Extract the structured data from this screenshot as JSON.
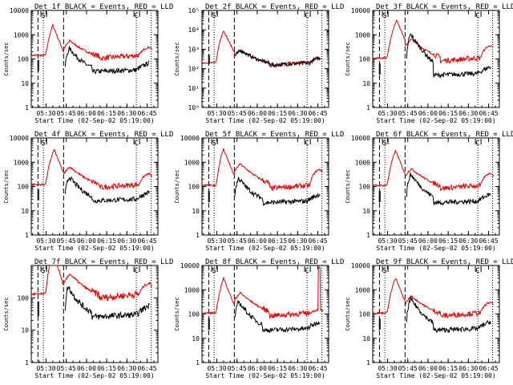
{
  "colors": {
    "events": "#000000",
    "lld": "#e00000",
    "axis": "#000000",
    "background": "#ffffff"
  },
  "chart_data": [
    {
      "type": "line",
      "title": "Det_1f BLACK = Events, RED = LLD",
      "xlabel": "Start Time (02-Sep-02 05:19:00)",
      "ylabel": "Counts/sec",
      "yscale": "log",
      "ylim": [
        1,
        10000
      ],
      "xlim": [
        "05:19",
        "06:53"
      ],
      "xtick_labels": [
        "05:30",
        "05:45",
        "06:00",
        "06:15",
        "06:30",
        "06:45"
      ],
      "ytick_labels": [
        "1",
        "10",
        "100",
        "1000",
        "10000"
      ],
      "markers": {
        "s_label": "S",
        "c_label": "C"
      },
      "events": {
        "base": 35,
        "dip_t": 5.2,
        "peak_t": 28,
        "peak": 250,
        "jump_t": 25,
        "scale": 1.0
      },
      "lld": {
        "base": 140,
        "peak_t": 16,
        "peak": 2500,
        "bump_t": 28,
        "bump": 500,
        "tail": 300
      },
      "series": [
        {
          "name": "Events",
          "color": "#000000"
        },
        {
          "name": "LLD",
          "color": "#e00000"
        }
      ]
    },
    {
      "type": "line",
      "title": "Det_2f BLACK = Events, RED = LLD",
      "xlabel": "Start Time (02-Sep-02 05:19:00)",
      "ylabel": "Counts/sec",
      "yscale": "log",
      "ylim": [
        1,
        100000
      ],
      "xlim": [
        "05:19",
        "06:53"
      ],
      "xtick_labels": [
        "05:30",
        "05:45",
        "06:00",
        "06:15",
        "06:30",
        "06:45"
      ],
      "ytick_labels": [
        "10⁰",
        "10¹",
        "10²",
        "10³",
        "10⁴",
        "10⁵"
      ],
      "markers": {
        "s_label": "S",
        "c_label": "C"
      },
      "events": {
        "base": 200,
        "dip_t": 5.2,
        "peak_t": 28,
        "peak": 800,
        "jump_t": 24,
        "scale": 1.0,
        "merge": true
      },
      "lld": {
        "base": 200,
        "peak_t": 16,
        "peak": 9000,
        "bump_t": 28,
        "bump": 800,
        "tail": 350
      },
      "series": [
        {
          "name": "Events",
          "color": "#000000"
        },
        {
          "name": "LLD",
          "color": "#e00000"
        }
      ]
    },
    {
      "type": "line",
      "title": "Det_3f BLACK = Events, RED = LLD",
      "xlabel": "Start Time (02-Sep-02 05:19:00)",
      "ylabel": "Counts/sec",
      "yscale": "log",
      "ylim": [
        1,
        10000
      ],
      "xlim": [
        "05:19",
        "06:53"
      ],
      "xtick_labels": [
        "05:30",
        "05:45",
        "06:00",
        "06:15",
        "06:30",
        "06:45"
      ],
      "ytick_labels": [
        "1",
        "10",
        "100",
        "1000",
        "10000"
      ],
      "markers": {
        "s_label": "S",
        "c_label": "C"
      },
      "events": {
        "base": 25,
        "dip_t": 5.2,
        "peak_t": 28,
        "peak": 1000,
        "jump_t": 25,
        "scale": 1.0
      },
      "lld": {
        "base": 110,
        "peak_t": 18,
        "peak": 4000,
        "bump_t": 28,
        "bump": 600,
        "tail": 350
      },
      "series": [
        {
          "name": "Events",
          "color": "#000000"
        },
        {
          "name": "LLD",
          "color": "#e00000"
        }
      ]
    },
    {
      "type": "line",
      "title": "Det_4f BLACK = Events, RED = LLD",
      "xlabel": "Start Time (02-Sep-02 05:19:00)",
      "ylabel": "Counts/sec",
      "yscale": "log",
      "ylim": [
        1,
        10000
      ],
      "xlim": [
        "05:19",
        "06:53"
      ],
      "xtick_labels": [
        "05:30",
        "05:45",
        "06:00",
        "06:15",
        "06:30",
        "06:45"
      ],
      "ytick_labels": [
        "1",
        "10",
        "100",
        "1000",
        "10000"
      ],
      "markers": {
        "s_label": "S",
        "c_label": "C"
      },
      "events": {
        "base": 30,
        "dip_t": 5.2,
        "peak_t": 28,
        "peak": 230,
        "jump_t": 25,
        "scale": 1.0
      },
      "lld": {
        "base": 120,
        "peak_t": 17,
        "peak": 3300,
        "bump_t": 28,
        "bump": 600,
        "tail": 330
      },
      "series": [
        {
          "name": "Events",
          "color": "#000000"
        },
        {
          "name": "LLD",
          "color": "#e00000"
        }
      ]
    },
    {
      "type": "line",
      "title": "Det_5f BLACK = Events, RED = LLD",
      "xlabel": "Start Time (02-Sep-02 05:19:00)",
      "ylabel": "Counts/sec",
      "yscale": "log",
      "ylim": [
        1,
        10000
      ],
      "xlim": [
        "05:19",
        "06:53"
      ],
      "xtick_labels": [
        "05:30",
        "05:45",
        "06:00",
        "06:15",
        "06:30",
        "06:45"
      ],
      "ytick_labels": [
        "1",
        "10",
        "100",
        "1000",
        "10000"
      ],
      "markers": {
        "s_label": "S",
        "c_label": "C"
      },
      "events": {
        "base": 25,
        "dip_t": 5.2,
        "peak_t": 27,
        "peak": 200,
        "jump_t": 24,
        "scale": 1.0
      },
      "lld": {
        "base": 110,
        "peak_t": 16,
        "peak": 3500,
        "bump_t": 28,
        "bump": 800,
        "tail": 500
      },
      "series": [
        {
          "name": "Events",
          "color": "#000000"
        },
        {
          "name": "LLD",
          "color": "#e00000"
        }
      ]
    },
    {
      "type": "line",
      "title": "Det_6f BLACK = Events, RED = LLD",
      "xlabel": "Start Time (02-Sep-02 05:19:00)",
      "ylabel": "Counts/sec",
      "yscale": "log",
      "ylim": [
        1,
        10000
      ],
      "xlim": [
        "05:19",
        "06:53"
      ],
      "xtick_labels": [
        "05:30",
        "05:45",
        "06:00",
        "06:15",
        "06:30",
        "06:45"
      ],
      "ytick_labels": [
        "1",
        "10",
        "100",
        "1000",
        "10000"
      ],
      "markers": {
        "s_label": "S",
        "c_label": "C"
      },
      "events": {
        "base": 25,
        "dip_t": 5.2,
        "peak_t": 28,
        "peak": 300,
        "jump_t": 25,
        "scale": 1.0
      },
      "lld": {
        "base": 110,
        "peak_t": 17,
        "peak": 3000,
        "bump_t": 28,
        "bump": 500,
        "tail": 350
      },
      "series": [
        {
          "name": "Events",
          "color": "#000000"
        },
        {
          "name": "LLD",
          "color": "#e00000"
        }
      ]
    },
    {
      "type": "line",
      "title": "Det_7f BLACK = Events, RED = LLD",
      "xlabel": "Start Time (02-Sep-02 05:19:00)",
      "ylabel": "Counts/sec",
      "yscale": "log",
      "ylim": [
        1,
        1000
      ],
      "xlim": [
        "05:19",
        "06:53"
      ],
      "xtick_labels": [
        "05:30",
        "05:45",
        "06:00",
        "06:15",
        "06:30",
        "06:45"
      ],
      "ytick_labels": [
        "1",
        "10",
        "100"
      ],
      "markers": {
        "s_label": "S",
        "c_label": "C"
      },
      "events": {
        "base": 30,
        "dip_t": 5.2,
        "peak_t": 27,
        "peak": 200,
        "jump_t": 25,
        "scale": 1.0
      },
      "lld": {
        "base": 130,
        "peak_t": 16,
        "peak": 3000,
        "bump_t": 28,
        "bump": 500,
        "tail": 280
      },
      "series": [
        {
          "name": "Events",
          "color": "#000000"
        },
        {
          "name": "LLD",
          "color": "#e00000"
        }
      ]
    },
    {
      "type": "line",
      "title": "Det_8f BLACK = Events, RED = LLD",
      "xlabel": "Start Time (02-Sep-02 05:19:00)",
      "ylabel": "Counts/sec",
      "yscale": "log",
      "ylim": [
        1,
        10000
      ],
      "xlim": [
        "05:19",
        "06:53"
      ],
      "xtick_labels": [
        "05:30",
        "05:45",
        "06:00",
        "06:15",
        "06:30",
        "06:45"
      ],
      "ytick_labels": [
        "1",
        "10",
        "100",
        "1000",
        "10000"
      ],
      "markers": {
        "s_label": "S",
        "c_label": "C"
      },
      "events": {
        "base": 25,
        "dip_t": 5.2,
        "peak_t": 27,
        "peak": 300,
        "jump_t": 24,
        "scale": 1.0
      },
      "lld": {
        "base": 110,
        "peak_t": 16,
        "peak": 3000,
        "bump_t": 28,
        "bump": 700,
        "tail": 150,
        "spike_t": 87,
        "spike": 8000
      },
      "series": [
        {
          "name": "Events",
          "color": "#000000"
        },
        {
          "name": "LLD",
          "color": "#e00000"
        }
      ]
    },
    {
      "type": "line",
      "title": "Det_9f BLACK = Events, RED = LLD",
      "xlabel": "Start Time (02-Sep-02 05:19:00)",
      "ylabel": "Counts/sec",
      "yscale": "log",
      "ylim": [
        1,
        10000
      ],
      "xlim": [
        "05:19",
        "06:53"
      ],
      "xtick_labels": [
        "05:30",
        "05:45",
        "06:00",
        "06:15",
        "06:30",
        "06:45"
      ],
      "ytick_labels": [
        "1",
        "10",
        "100",
        "1000",
        "10000"
      ],
      "markers": {
        "s_label": "S",
        "c_label": "C"
      },
      "events": {
        "base": 25,
        "dip_t": 5.2,
        "peak_t": 28,
        "peak": 400,
        "jump_t": 25,
        "scale": 1.0
      },
      "lld": {
        "base": 110,
        "peak_t": 17,
        "peak": 3000,
        "bump_t": 28,
        "bump": 500,
        "tail": 300
      },
      "series": [
        {
          "name": "Events",
          "color": "#000000"
        },
        {
          "name": "LLD",
          "color": "#e00000"
        }
      ]
    }
  ]
}
